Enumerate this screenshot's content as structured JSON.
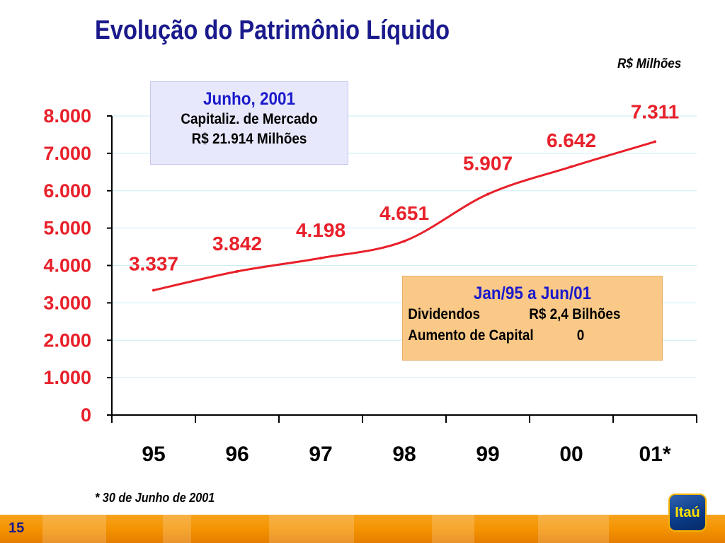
{
  "page": {
    "title": "Evolução do Patrimônio Líquido",
    "units": "R$ Milhões",
    "footnote": "* 30 de Junho de 2001",
    "page_number": "15",
    "logo_text": "Itaú"
  },
  "box_market": {
    "title": "Junho, 2001",
    "line1": "Capitaliz. de Mercado",
    "line2": "R$ 21.914 Milhões"
  },
  "box_dividends": {
    "title": "Jan/95 a Jun/01",
    "row1_label": "Dividendos",
    "row1_value": "R$   2,4 Bilhões",
    "row2_label": "Aumento de Capital",
    "row2_value": "0"
  },
  "colors": {
    "title": "#1a1a8c",
    "line": "#e8202a",
    "label": "#e8202a",
    "grid": "#c9eef7",
    "accent_blue": "#1a1acc"
  },
  "chart_data": {
    "type": "line",
    "categories": [
      "95",
      "96",
      "97",
      "98",
      "99",
      "00",
      "01*"
    ],
    "values": [
      3337,
      3842,
      4198,
      4651,
      5907,
      6642,
      7311
    ],
    "value_labels": [
      "3.337",
      "3.842",
      "4.198",
      "4.651",
      "5.907",
      "6.642",
      "7.311"
    ],
    "y_ticks": [
      0,
      1000,
      2000,
      3000,
      4000,
      5000,
      6000,
      7000,
      8000
    ],
    "y_tick_labels": [
      "0",
      "1.000",
      "2.000",
      "3.000",
      "4.000",
      "5.000",
      "6.000",
      "7.000",
      "8.000"
    ],
    "ylim": [
      0,
      8000
    ],
    "title": "Evolução do Patrimônio Líquido",
    "ylabel": "R$ Milhões",
    "xlabel": "",
    "grid": true
  }
}
